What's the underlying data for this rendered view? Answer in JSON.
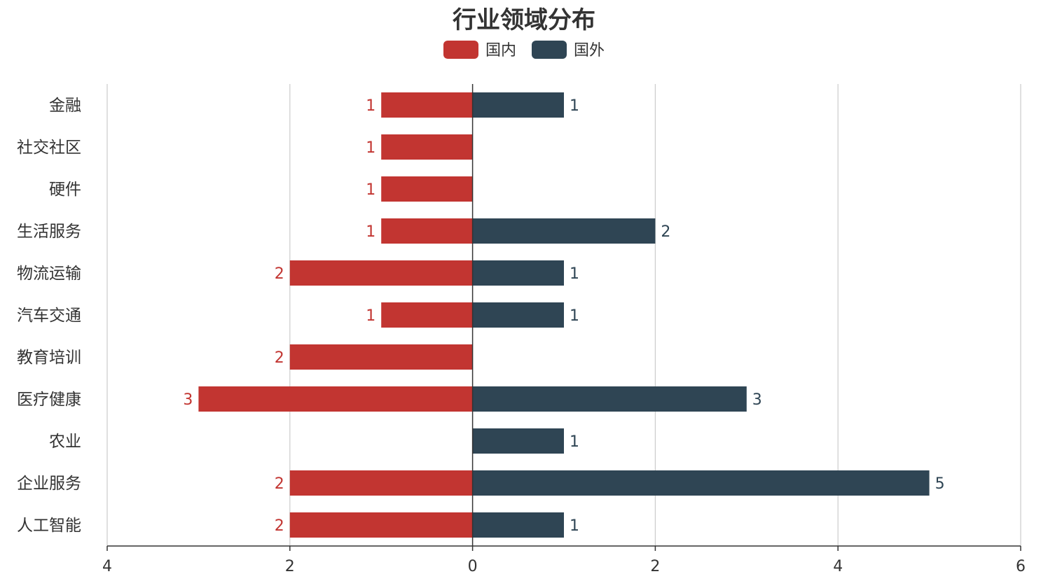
{
  "chart_data": {
    "type": "bar",
    "orientation": "horizontal-butterfly",
    "title": "行业领域分布",
    "legend_position": "top-center",
    "grid": "vertical",
    "categories": [
      "金融",
      "社交社区",
      "硬件",
      "生活服务",
      "物流运输",
      "汽车交通",
      "教育培训",
      "医疗健康",
      "农业",
      "企业服务",
      "人工智能"
    ],
    "series": [
      {
        "name": "国内",
        "color": "#c23531",
        "direction": "left",
        "values": [
          1,
          1,
          1,
          1,
          2,
          1,
          2,
          3,
          0,
          2,
          2
        ]
      },
      {
        "name": "国外",
        "color": "#2f4554",
        "direction": "right",
        "values": [
          1,
          0,
          0,
          2,
          1,
          1,
          0,
          3,
          1,
          5,
          1
        ]
      }
    ],
    "xlim": [
      -4,
      6
    ],
    "x_ticks": [
      -4,
      -2,
      0,
      2,
      4,
      6
    ],
    "x_tick_labels": [
      "4",
      "2",
      "0",
      "2",
      "4",
      "6"
    ],
    "xlabel": "",
    "ylabel": ""
  }
}
